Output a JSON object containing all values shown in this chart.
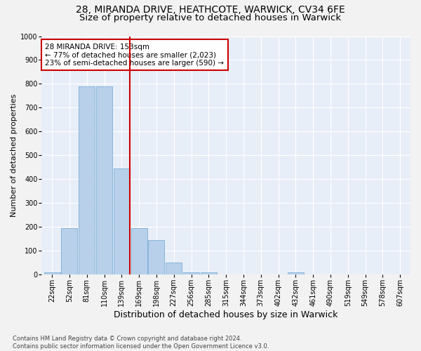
{
  "title_line1": "28, MIRANDA DRIVE, HEATHCOTE, WARWICK, CV34 6FE",
  "title_line2": "Size of property relative to detached houses in Warwick",
  "xlabel": "Distribution of detached houses by size in Warwick",
  "ylabel": "Number of detached properties",
  "footnote": "Contains HM Land Registry data © Crown copyright and database right 2024.\nContains public sector information licensed under the Open Government Licence v3.0.",
  "bin_labels": [
    "22sqm",
    "52sqm",
    "81sqm",
    "110sqm",
    "139sqm",
    "169sqm",
    "198sqm",
    "227sqm",
    "256sqm",
    "285sqm",
    "315sqm",
    "344sqm",
    "373sqm",
    "402sqm",
    "432sqm",
    "461sqm",
    "490sqm",
    "519sqm",
    "549sqm",
    "578sqm",
    "607sqm"
  ],
  "bar_values": [
    10,
    195,
    790,
    790,
    445,
    195,
    145,
    50,
    10,
    10,
    0,
    0,
    0,
    0,
    10,
    0,
    0,
    0,
    0,
    0,
    0
  ],
  "bar_color": "#b8d0ea",
  "bar_edgecolor": "#7aafd4",
  "vline_x": 4.48,
  "vline_color": "#cc0000",
  "annotation_text": "28 MIRANDA DRIVE: 153sqm\n← 77% of detached houses are smaller (2,023)\n23% of semi-detached houses are larger (590) →",
  "annotation_box_facecolor": "#ffffff",
  "annotation_box_edgecolor": "#cc0000",
  "ylim": [
    0,
    1000
  ],
  "yticks": [
    0,
    100,
    200,
    300,
    400,
    500,
    600,
    700,
    800,
    900,
    1000
  ],
  "background_color": "#e8eef8",
  "grid_color": "#ffffff",
  "fig_facecolor": "#f2f2f2",
  "title_fontsize": 10,
  "subtitle_fontsize": 9.5,
  "xlabel_fontsize": 9,
  "ylabel_fontsize": 8,
  "tick_fontsize": 7,
  "annotation_fontsize": 7.5,
  "footnote_fontsize": 6
}
